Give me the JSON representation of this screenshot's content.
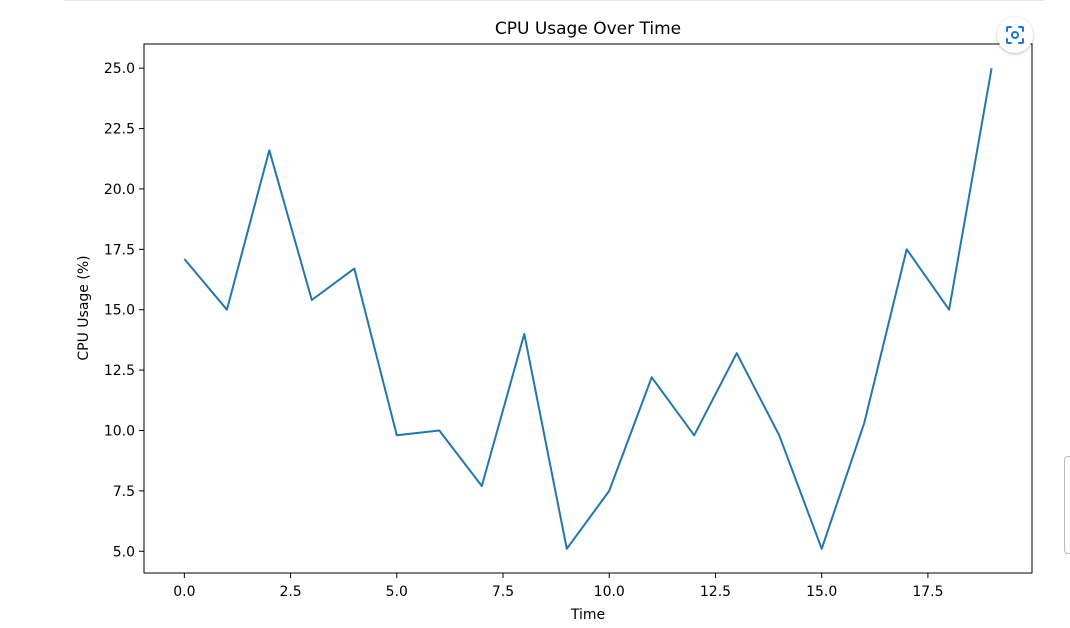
{
  "chart_data": {
    "type": "line",
    "title": "CPU Usage Over Time",
    "xlabel": "Time",
    "ylabel": "CPU Usage (%)",
    "xlim": [
      -0.95,
      19.95
    ],
    "ylim": [
      4.1,
      26.0
    ],
    "xticks": [
      0.0,
      2.5,
      5.0,
      7.5,
      10.0,
      12.5,
      15.0,
      17.5
    ],
    "xtick_labels": [
      "0.0",
      "2.5",
      "5.0",
      "7.5",
      "10.0",
      "12.5",
      "15.0",
      "17.5"
    ],
    "yticks": [
      5.0,
      7.5,
      10.0,
      12.5,
      15.0,
      17.5,
      20.0,
      22.5,
      25.0
    ],
    "ytick_labels": [
      "5.0",
      "7.5",
      "10.0",
      "12.5",
      "15.0",
      "17.5",
      "20.0",
      "22.5",
      "25.0"
    ],
    "grid": false,
    "series": [
      {
        "color": "#1f77b4",
        "x": [
          0,
          1,
          2,
          3,
          4,
          5,
          6,
          7,
          8,
          9,
          10,
          11,
          12,
          13,
          14,
          15,
          16,
          17,
          18,
          19
        ],
        "y": [
          17.1,
          15.0,
          21.6,
          15.4,
          16.7,
          9.8,
          10.0,
          7.7,
          14.0,
          5.1,
          7.5,
          12.2,
          9.8,
          13.2,
          9.8,
          5.1,
          10.3,
          17.5,
          15.0,
          25.0
        ]
      }
    ]
  },
  "toolbar": {
    "focus_icon": "focus-scan-icon",
    "focus_icon_color": "#1a73e8"
  }
}
